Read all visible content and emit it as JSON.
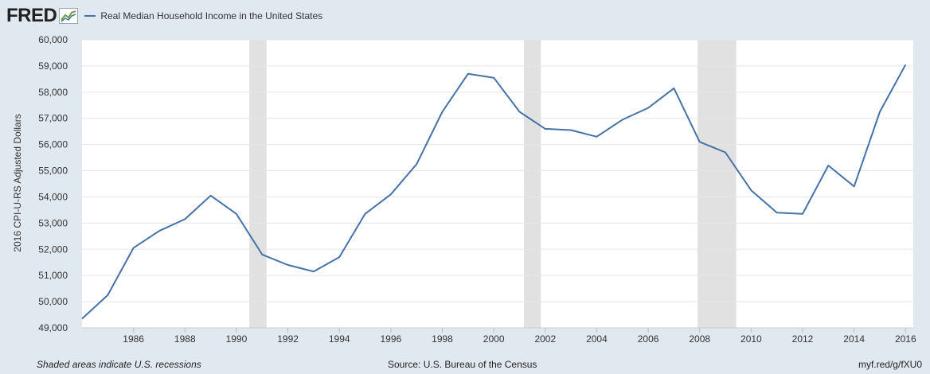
{
  "brand": {
    "logo_text": "FRED"
  },
  "footer": {
    "recession_note": "Shaded areas indicate U.S. recessions",
    "source": "Source: U.S. Bureau of the Census",
    "short_url": "myf.red/g/fXU0"
  },
  "colors": {
    "series": "#4572a7",
    "recession": "#e1e1e1",
    "background": "#e1e9f0",
    "plot": "#ffffff"
  },
  "chart_data": {
    "type": "line",
    "title": "Real Median Household Income in the United States",
    "xlabel": "",
    "ylabel": "2016 CPI-U-RS Adjusted Dollars",
    "xlim": [
      1984,
      2016.3
    ],
    "ylim": [
      49000,
      60000
    ],
    "x_ticks": [
      1986,
      1988,
      1990,
      1992,
      1994,
      1996,
      1998,
      2000,
      2002,
      2004,
      2006,
      2008,
      2010,
      2012,
      2014,
      2016
    ],
    "y_ticks": [
      49000,
      50000,
      51000,
      52000,
      53000,
      54000,
      55000,
      56000,
      57000,
      58000,
      59000,
      60000
    ],
    "y_tick_labels": [
      "49,000",
      "50,000",
      "51,000",
      "52,000",
      "53,000",
      "54,000",
      "55,000",
      "56,000",
      "57,000",
      "58,000",
      "59,000",
      "60,000"
    ],
    "grid": true,
    "legend": "top-left",
    "recessions": [
      [
        1990.5,
        1991.17
      ],
      [
        2001.17,
        2001.83
      ],
      [
        2007.92,
        2009.42
      ]
    ],
    "series": [
      {
        "name": "Real Median Household Income in the United States",
        "x": [
          1984,
          1985,
          1986,
          1987,
          1988,
          1989,
          1990,
          1991,
          1992,
          1993,
          1994,
          1995,
          1996,
          1997,
          1998,
          1999,
          2000,
          2001,
          2002,
          2003,
          2004,
          2005,
          2006,
          2007,
          2008,
          2009,
          2010,
          2011,
          2012,
          2013,
          2014,
          2015,
          2016
        ],
        "values": [
          49350,
          50250,
          52050,
          52700,
          53150,
          54050,
          53350,
          51800,
          51400,
          51150,
          51700,
          53350,
          54100,
          55250,
          57250,
          58700,
          58550,
          57250,
          56600,
          56550,
          56300,
          56950,
          57400,
          58150,
          56100,
          55700,
          54250,
          53400,
          53350,
          55200,
          54400,
          57250,
          59050
        ]
      }
    ]
  }
}
